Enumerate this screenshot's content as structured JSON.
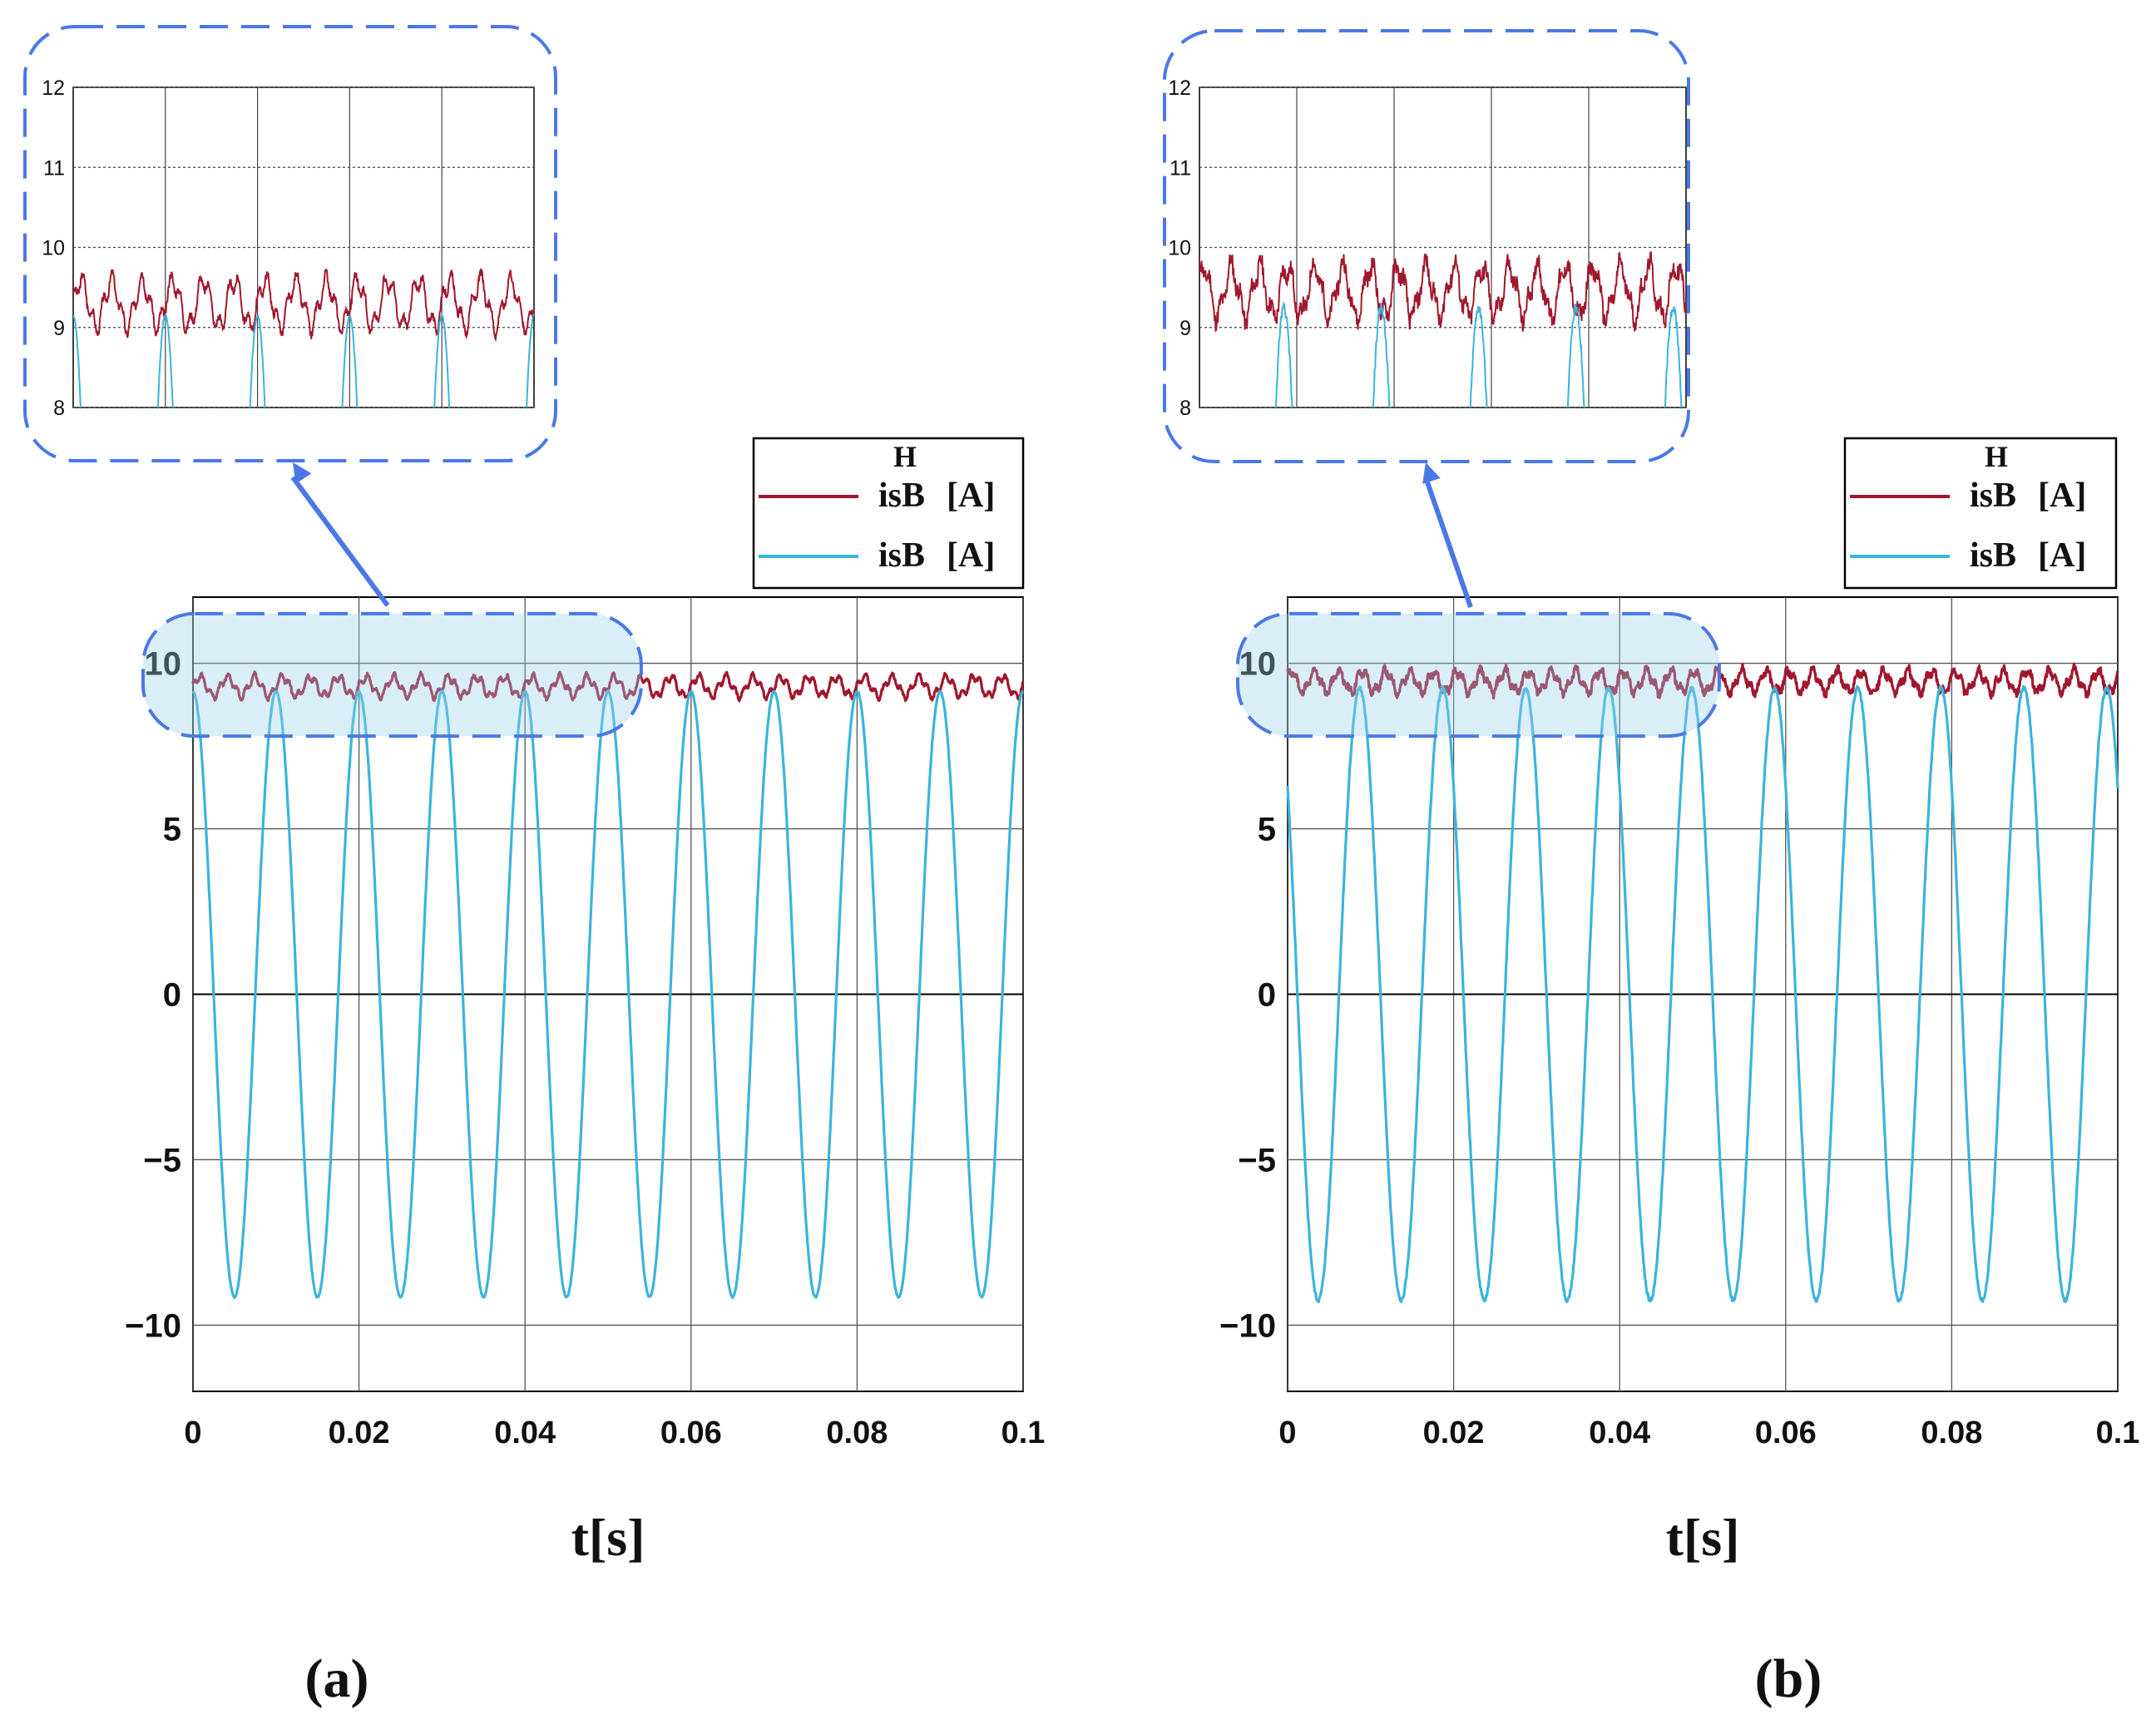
{
  "panels": [
    {
      "id": "a",
      "label": "(a)",
      "xlabel": "t[s]",
      "chart_data": {
        "type": "line",
        "xlim": [
          0,
          0.1
        ],
        "ylim": [
          -12,
          12
        ],
        "xticks": [
          0,
          0.02,
          0.04,
          0.06,
          0.08,
          0.1
        ],
        "xtick_labels": [
          "0",
          "0.02",
          "0.04",
          "0.06",
          "0.08",
          "0.1"
        ],
        "yticks": [
          -10,
          -5,
          0,
          5,
          10
        ],
        "ytick_labels": [
          "−10",
          "−5",
          "0",
          "5",
          "10"
        ],
        "grid": true,
        "series": [
          {
            "name": "isB H [A]",
            "color": "#a0182e",
            "kind": "envelope",
            "mean": 9.3,
            "amp": 0.28,
            "freq": 300,
            "phase": 0.0,
            "noise": 0.1,
            "seed": 3
          },
          {
            "name": "isB [A]",
            "color": "#3bb4dc",
            "kind": "sine",
            "amp": 9.15,
            "freq": 100,
            "phase": 1.5708,
            "noise": 0.04,
            "seed": 7
          }
        ],
        "legend": {
          "position": "top-right",
          "entries": [
            {
              "main": "isB",
              "sup": "H",
              "unit": "[A]",
              "color": "#a0182e"
            },
            {
              "main": "isB",
              "sup": "",
              "unit": "[A]",
              "color": "#3bb4dc"
            }
          ]
        },
        "zoom": {
          "xlim": [
            0,
            0.05
          ],
          "ylim": [
            8,
            12
          ],
          "ytick_labels": [
            "8",
            "9",
            "10",
            "11",
            "12"
          ],
          "source_xlim": [
            0,
            0.054
          ],
          "source_ylim": [
            8,
            11.5
          ]
        }
      }
    },
    {
      "id": "b",
      "label": "(b)",
      "xlabel": "t[s]",
      "chart_data": {
        "type": "line",
        "xlim": [
          0,
          0.1
        ],
        "ylim": [
          -12,
          12
        ],
        "xticks": [
          0,
          0.02,
          0.04,
          0.06,
          0.08,
          0.1
        ],
        "xtick_labels": [
          "0",
          "0.02",
          "0.04",
          "0.06",
          "0.08",
          "0.1"
        ],
        "yticks": [
          -10,
          -5,
          0,
          5,
          10
        ],
        "ytick_labels": [
          "−10",
          "−5",
          "0",
          "5",
          "10"
        ],
        "grid": true,
        "series": [
          {
            "name": "isB H [A]",
            "color": "#a0182e",
            "kind": "envelope",
            "mean": 9.45,
            "amp": 0.3,
            "freq": 350,
            "phase": 0.6,
            "noise": 0.22,
            "seed": 11
          },
          {
            "name": "isB [A]",
            "color": "#3bb4dc",
            "kind": "sine",
            "amp": 9.25,
            "freq": 100,
            "phase": 2.4,
            "noise": 0.12,
            "seed": 5
          }
        ],
        "legend": {
          "position": "top-right",
          "entries": [
            {
              "main": "isB",
              "sup": "H",
              "unit": "[A]",
              "color": "#a0182e"
            },
            {
              "main": "isB",
              "sup": "",
              "unit": "[A]",
              "color": "#3bb4dc"
            }
          ]
        },
        "zoom": {
          "xlim": [
            0,
            0.05
          ],
          "ylim": [
            8,
            12
          ],
          "ytick_labels": [
            "8",
            "9",
            "10",
            "11",
            "12"
          ],
          "source_xlim": [
            0,
            0.052
          ],
          "source_ylim": [
            8,
            11.5
          ]
        }
      }
    }
  ]
}
